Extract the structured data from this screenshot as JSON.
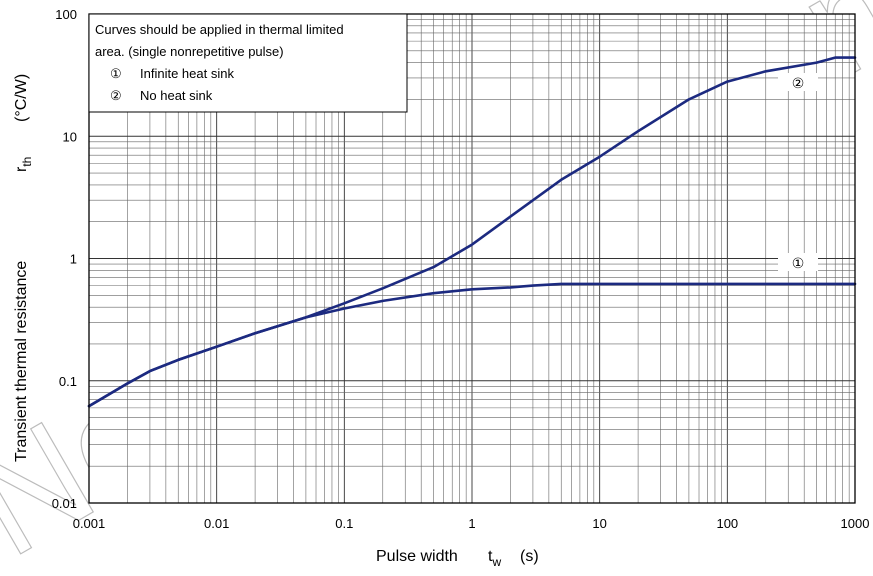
{
  "chart_data": {
    "type": "line",
    "x_scale": "log",
    "y_scale": "log",
    "xlim": [
      0.001,
      1000
    ],
    "ylim": [
      0.01,
      100
    ],
    "grid": true,
    "x_ticks": [
      "0.001",
      "0.01",
      "0.1",
      "1",
      "10",
      "100",
      "1000"
    ],
    "y_ticks": [
      "0.01",
      "0.1",
      "1",
      "10",
      "100"
    ],
    "xlabel": {
      "main": "Pulse width",
      "symbol": "t",
      "subscript": "w",
      "unit": "(s)"
    },
    "ylabel": {
      "main": "Transient thermal resistance",
      "symbol": "r",
      "subscript": "th",
      "unit": "(°C/W)"
    },
    "legend": {
      "placement": "top-left",
      "lines": [
        "Curves should be applied in thermal limited",
        "area. (single nonrepetitive pulse)"
      ],
      "entries": [
        {
          "marker": "①",
          "text": "Infinite heat sink"
        },
        {
          "marker": "②",
          "text": "No heat sink"
        }
      ]
    },
    "series": [
      {
        "marker": "①",
        "color": "#1c2a80",
        "x": [
          0.001,
          0.002,
          0.003,
          0.005,
          0.01,
          0.02,
          0.05,
          0.1,
          0.2,
          0.5,
          1,
          2,
          3,
          5,
          10,
          100,
          1000
        ],
        "y": [
          0.062,
          0.095,
          0.12,
          0.148,
          0.19,
          0.245,
          0.33,
          0.39,
          0.45,
          0.52,
          0.56,
          0.58,
          0.6,
          0.62,
          0.62,
          0.62,
          0.62
        ]
      },
      {
        "marker": "②",
        "color": "#1c2a80",
        "x": [
          0.001,
          0.002,
          0.003,
          0.005,
          0.01,
          0.02,
          0.05,
          0.1,
          0.2,
          0.5,
          1,
          2,
          5,
          10,
          20,
          50,
          100,
          200,
          500,
          700,
          1000
        ],
        "y": [
          0.062,
          0.095,
          0.12,
          0.148,
          0.19,
          0.245,
          0.33,
          0.43,
          0.57,
          0.85,
          1.3,
          2.2,
          4.4,
          6.8,
          11,
          20,
          28,
          34,
          40,
          44,
          44
        ]
      }
    ],
    "watermark": "Not Recommended"
  }
}
